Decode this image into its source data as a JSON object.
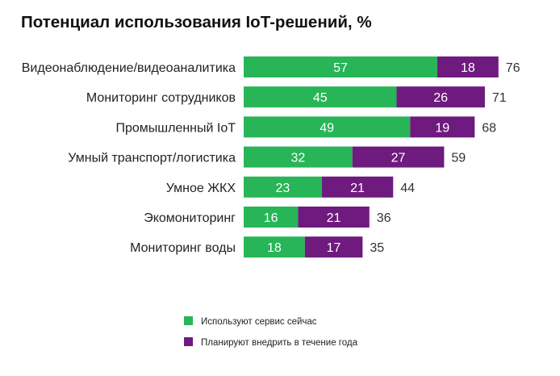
{
  "chart_data": {
    "type": "bar",
    "orientation": "horizontal",
    "stacked": true,
    "title": "Потенциал использования IoT-решений, %",
    "xlabel": "",
    "ylabel": "",
    "grid": false,
    "legend_position": "bottom-center",
    "categories": [
      "Видеонаблюдение/видеоаналитика",
      "Мониторинг сотрудников",
      "Промышленный IoT",
      "Умный транспорт/логистика",
      "Умное ЖКХ",
      "Экомониторинг",
      "Мониторинг воды"
    ],
    "series": [
      {
        "name": "Используют сервис сейчас",
        "color": "#27b557",
        "values": [
          57,
          45,
          49,
          32,
          23,
          16,
          18
        ]
      },
      {
        "name": "Планируют внедрить в течение года",
        "color": "#6e1a7e",
        "values": [
          18,
          26,
          19,
          27,
          21,
          21,
          17
        ]
      }
    ],
    "totals": [
      76,
      71,
      68,
      59,
      44,
      36,
      35
    ],
    "xlim": [
      0,
      76
    ]
  }
}
